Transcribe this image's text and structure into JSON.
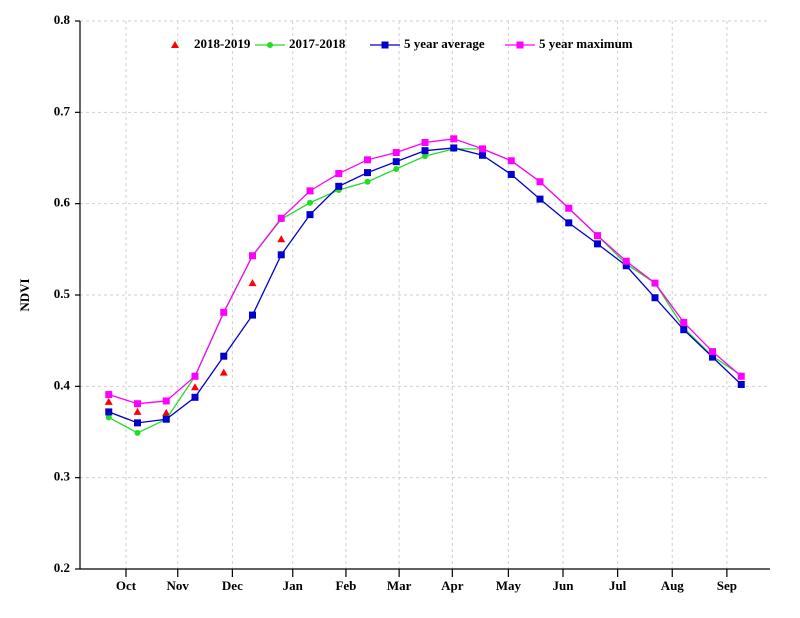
{
  "chart_data": {
    "type": "line",
    "ylabel": "NDVI",
    "x": [
      0,
      1,
      2,
      3,
      4,
      5,
      6,
      7,
      8,
      9,
      10,
      11,
      12,
      13,
      14,
      15,
      16,
      17,
      18,
      19,
      20,
      21,
      22
    ],
    "xlim": [
      -1,
      23
    ],
    "xticks": [
      {
        "value": 0.6,
        "label": "Oct"
      },
      {
        "value": 2.4,
        "label": "Nov"
      },
      {
        "value": 4.3,
        "label": "Dec"
      },
      {
        "value": 6.4,
        "label": "Jan"
      },
      {
        "value": 8.25,
        "label": "Feb"
      },
      {
        "value": 10.1,
        "label": "Mar"
      },
      {
        "value": 11.95,
        "label": "Apr"
      },
      {
        "value": 13.9,
        "label": "May"
      },
      {
        "value": 15.8,
        "label": "Jun"
      },
      {
        "value": 17.7,
        "label": "Jul"
      },
      {
        "value": 19.6,
        "label": "Aug"
      },
      {
        "value": 21.5,
        "label": "Sep"
      }
    ],
    "ylim": [
      0.2,
      0.8
    ],
    "yticks": [
      0.2,
      0.3,
      0.4,
      0.5,
      0.6,
      0.7,
      0.8
    ],
    "grid": true,
    "legend": "top",
    "series": [
      {
        "name": "2018-2019",
        "color": "#ff0000",
        "marker": "triangle",
        "line": false,
        "values": [
          0.383,
          0.372,
          0.371,
          0.399,
          0.415,
          0.513,
          0.561,
          0.614,
          null,
          null,
          null,
          null,
          null,
          null,
          null,
          null,
          null,
          null,
          null,
          null,
          null,
          null,
          null
        ]
      },
      {
        "name": "2017-2018",
        "color": "#22dd22",
        "marker": "circle",
        "line": true,
        "values": [
          0.366,
          0.349,
          0.364,
          0.411,
          0.481,
          0.543,
          0.583,
          0.601,
          0.615,
          0.624,
          0.638,
          0.652,
          0.66,
          0.66,
          0.647,
          0.624,
          0.595,
          0.565,
          0.534,
          0.513,
          0.464,
          0.433,
          0.412
        ]
      },
      {
        "name": "5 year average",
        "color": "#0000cc",
        "marker": "square",
        "line": true,
        "values": [
          0.372,
          0.36,
          0.364,
          0.388,
          0.433,
          0.478,
          0.544,
          0.588,
          0.619,
          0.634,
          0.646,
          0.658,
          0.661,
          0.653,
          0.632,
          0.605,
          0.579,
          0.556,
          0.532,
          0.497,
          0.462,
          0.432,
          0.402
        ]
      },
      {
        "name": "5 year maximum",
        "color": "#ff00ff",
        "marker": "square",
        "line": true,
        "values": [
          0.391,
          0.381,
          0.384,
          0.411,
          0.481,
          0.543,
          0.584,
          0.614,
          0.633,
          0.648,
          0.656,
          0.667,
          0.671,
          0.66,
          0.647,
          0.624,
          0.595,
          0.565,
          0.537,
          0.513,
          0.47,
          0.438,
          0.411
        ]
      }
    ]
  }
}
